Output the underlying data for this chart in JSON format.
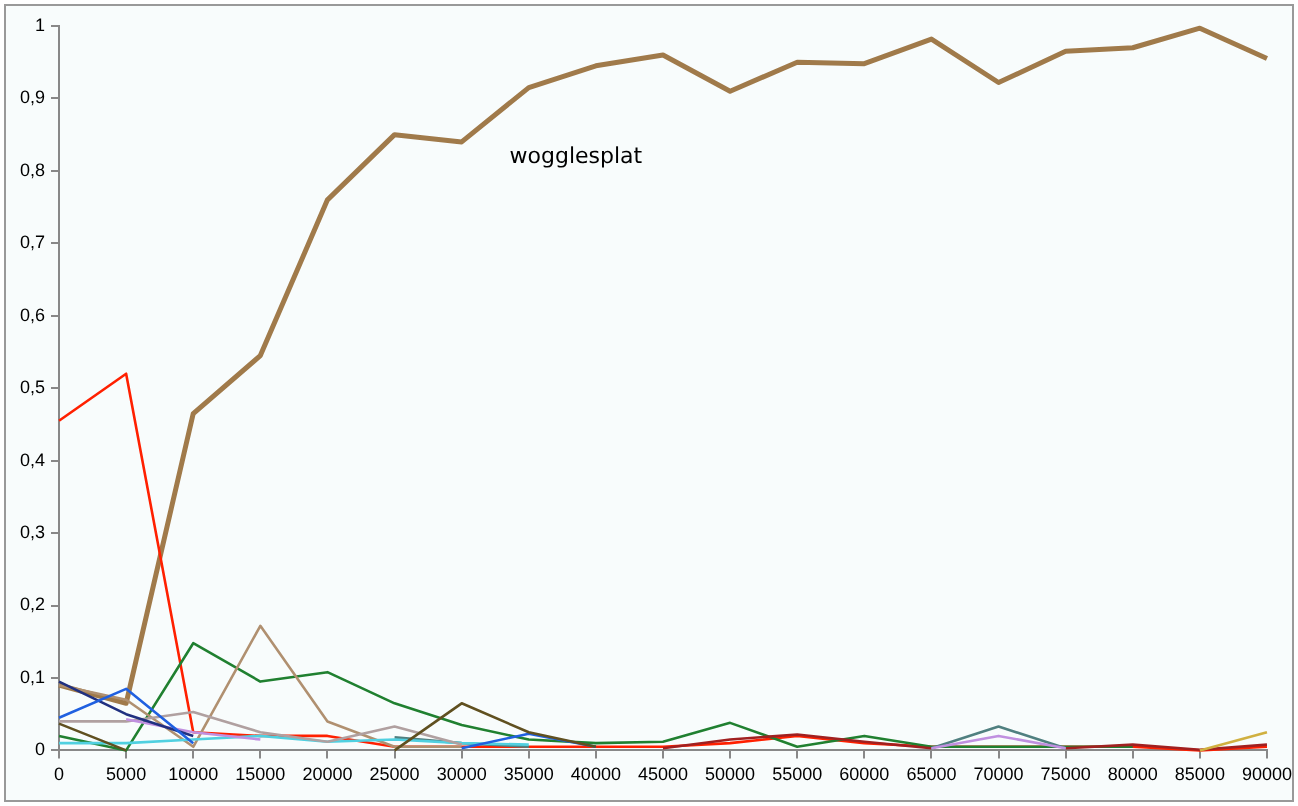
{
  "chart_data": {
    "type": "line",
    "x": [
      0,
      5000,
      10000,
      15000,
      20000,
      25000,
      30000,
      35000,
      40000,
      45000,
      50000,
      55000,
      60000,
      65000,
      70000,
      75000,
      80000,
      85000,
      90000
    ],
    "xlim": [
      0,
      90000
    ],
    "xticks": [
      0,
      5000,
      10000,
      15000,
      20000,
      25000,
      30000,
      35000,
      40000,
      45000,
      50000,
      55000,
      60000,
      65000,
      70000,
      75000,
      80000,
      85000,
      90000
    ],
    "ylim": [
      0,
      1
    ],
    "yticks": [
      0,
      {
        "value": 0.1,
        "label": "0,1"
      },
      {
        "value": 0.2,
        "label": "0,2"
      },
      {
        "value": 0.3,
        "label": "0,3"
      },
      {
        "value": 0.4,
        "label": "0,4"
      },
      {
        "value": 0.5,
        "label": "0,5"
      },
      {
        "value": 0.6,
        "label": "0,6"
      },
      {
        "value": 0.7,
        "label": "0,7"
      },
      {
        "value": 0.8,
        "label": "0,8"
      },
      {
        "value": 0.9,
        "label": "0,9"
      },
      1
    ],
    "grid": false,
    "legend": false,
    "marker": "none",
    "line_style": "solid",
    "series": [
      {
        "color": "#605020",
        "values": [
          0.037,
          0,
          null,
          null,
          null,
          0,
          0.065,
          0.025,
          0.005,
          null,
          null,
          null,
          null,
          null,
          null,
          null,
          null,
          null,
          null
        ]
      },
      {
        "color": "#2060e0",
        "values": [
          0.045,
          0.085,
          0.01,
          null,
          null,
          null,
          0.003,
          0.023,
          0.005,
          null,
          null,
          null,
          null,
          null,
          null,
          null,
          null,
          null,
          null
        ]
      },
      {
        "color": "#203080",
        "values": [
          0.095,
          0.05,
          0.02,
          null,
          null,
          null,
          null,
          null,
          null,
          null,
          null,
          null,
          null,
          null,
          null,
          null,
          null,
          null,
          null
        ]
      },
      {
        "color": "#c090e0",
        "values": [
          null,
          0.043,
          0.025,
          0.015,
          null,
          null,
          null,
          null,
          null,
          null,
          null,
          null,
          null,
          0.003,
          0.02,
          0.003,
          null,
          null,
          null
        ]
      },
      {
        "color": "#b0a0a0",
        "values": [
          0.04,
          0.04,
          0.053,
          0.025,
          0.012,
          0.033,
          0.008,
          null,
          null,
          null,
          null,
          null,
          null,
          null,
          null,
          null,
          null,
          null,
          null
        ]
      },
      {
        "color": "#50d0e0",
        "values": [
          0.01,
          0.01,
          0.015,
          0.02,
          0.012,
          0.015,
          0.01,
          0.008,
          null,
          null,
          null,
          null,
          null,
          null,
          null,
          null,
          null,
          null,
          null
        ]
      },
      {
        "color": "#508080",
        "values": [
          null,
          null,
          null,
          null,
          null,
          0.018,
          0.01,
          0.005,
          null,
          null,
          null,
          null,
          null,
          0.003,
          0.033,
          0.003,
          null,
          null,
          null
        ]
      },
      {
        "color": "#d0b040",
        "values": [
          null,
          null,
          null,
          null,
          null,
          null,
          null,
          null,
          null,
          null,
          null,
          null,
          null,
          null,
          null,
          null,
          null,
          0,
          0.025
        ]
      },
      {
        "color": "#a02020",
        "values": [
          null,
          null,
          null,
          null,
          null,
          null,
          null,
          null,
          null,
          0.003,
          0.015,
          0.022,
          0.012,
          0.003,
          null,
          0.003,
          0.008,
          0.001,
          0.008
        ]
      },
      {
        "color": "#b09070",
        "values": [
          0.09,
          0.07,
          0.005,
          0.172,
          0.04,
          0.005,
          0.005,
          null,
          null,
          null,
          null,
          null,
          null,
          null,
          null,
          null,
          null,
          null,
          null
        ]
      },
      {
        "color": "#208030",
        "values": [
          0.02,
          0,
          0.148,
          0.095,
          0.108,
          0.065,
          0.035,
          0.015,
          0.01,
          0.012,
          0.038,
          0.005,
          0.02,
          0.005,
          0.005,
          0.005,
          0.005,
          null,
          null
        ]
      },
      {
        "color": "#ff2000",
        "values": [
          0.455,
          0.52,
          0.025,
          0.02,
          0.02,
          0.005,
          0.005,
          0.005,
          0.005,
          0.005,
          0.01,
          0.02,
          0.01,
          0.005,
          0.005,
          0.005,
          0.005,
          0,
          0.005
        ]
      },
      {
        "name": "wogglesplat",
        "color": "#a07a4a",
        "values": [
          0.09,
          0.065,
          0.465,
          0.545,
          0.76,
          0.85,
          0.84,
          0.915,
          0.945,
          0.96,
          0.91,
          0.95,
          0.948,
          0.982,
          0.922,
          0.965,
          0.97,
          0.997,
          0.955
        ]
      }
    ]
  }
}
